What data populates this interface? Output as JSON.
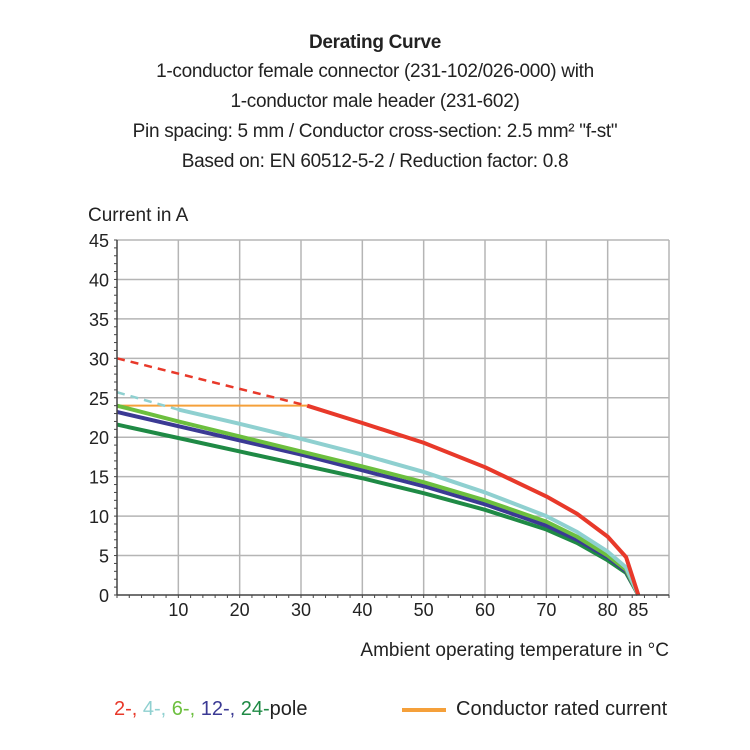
{
  "chart_data": {
    "type": "line",
    "title": "Derating Curve",
    "subtitle": [
      "1-conductor female connector (231-102/026-000) with",
      "1-conductor male header (231-602)",
      "Pin spacing: 5 mm / Conductor cross-section: 2.5 mm² \"f-st\"",
      "Based on: EN 60512-5-2 / Reduction factor: 0.8"
    ],
    "xlabel": "Ambient operating temperature in °C",
    "ylabel": "Current in A",
    "xlim": [
      0,
      90
    ],
    "ylim": [
      0,
      45
    ],
    "xticks": [
      10,
      20,
      30,
      40,
      50,
      60,
      70,
      80,
      85
    ],
    "yticks": [
      0,
      5,
      10,
      15,
      20,
      25,
      30,
      35,
      40,
      45
    ],
    "grid": true,
    "legend": {
      "poles": [
        {
          "text": "2-,",
          "color": "#e8392a"
        },
        {
          "text": " 4-,",
          "color": "#8fd0d0"
        },
        {
          "text": " 6-,",
          "color": "#6cbf3e"
        },
        {
          "text": " 12-,",
          "color": "#3b3a94"
        },
        {
          "text": " 24-",
          "color": "#1f8a45"
        },
        {
          "text": "pole",
          "color": "#222222"
        }
      ],
      "rated": {
        "text": "Conductor rated current",
        "color": "#f5a03a"
      }
    },
    "series": [
      {
        "pole": "2",
        "color": "#e8392a",
        "dashed_until": 31,
        "x": [
          0,
          31,
          40,
          50,
          60,
          70,
          75,
          80,
          83,
          85
        ],
        "y": [
          30,
          24,
          21.8,
          19.3,
          16.2,
          12.5,
          10.3,
          7.4,
          4.8,
          0
        ]
      },
      {
        "pole": "4",
        "color": "#8fd0d0",
        "dashed_until": 10,
        "x": [
          0,
          10,
          20,
          30,
          40,
          50,
          60,
          70,
          75,
          80,
          83,
          85
        ],
        "y": [
          25.7,
          23.5,
          21.7,
          19.8,
          17.8,
          15.6,
          13,
          10,
          8,
          5.5,
          3.5,
          0
        ]
      },
      {
        "pole": "6",
        "color": "#6cbf3e",
        "x": [
          0,
          10,
          20,
          30,
          40,
          50,
          60,
          70,
          75,
          80,
          83,
          85
        ],
        "y": [
          24,
          22,
          20.1,
          18.2,
          16.3,
          14.3,
          12,
          9.3,
          7.4,
          5,
          3.2,
          0
        ]
      },
      {
        "pole": "12",
        "color": "#3b3a94",
        "x": [
          0,
          10,
          20,
          30,
          40,
          50,
          60,
          70,
          75,
          80,
          83,
          85
        ],
        "y": [
          23.2,
          21.4,
          19.6,
          17.8,
          15.8,
          13.8,
          11.5,
          8.8,
          7,
          4.8,
          3,
          0
        ]
      },
      {
        "pole": "24",
        "color": "#1f8a45",
        "x": [
          0,
          10,
          20,
          30,
          40,
          50,
          60,
          70,
          75,
          80,
          83,
          85
        ],
        "y": [
          21.6,
          19.9,
          18.2,
          16.5,
          14.8,
          12.9,
          10.8,
          8.3,
          6.6,
          4.4,
          2.8,
          0
        ]
      }
    ],
    "rated_current": {
      "x": [
        0,
        31
      ],
      "y": [
        24,
        24
      ],
      "color": "#f5a03a"
    }
  }
}
